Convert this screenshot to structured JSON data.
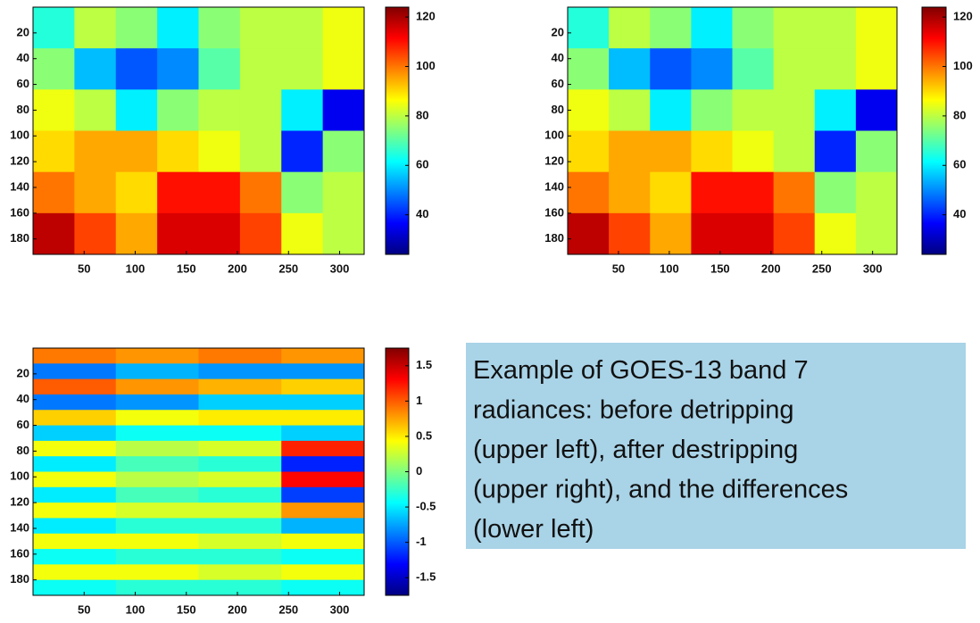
{
  "chart_data": [
    {
      "type": "heatmap",
      "colormap": "jet",
      "xlim": [
        0,
        324
      ],
      "ylim": [
        0,
        192
      ],
      "y_reversed": true,
      "xticks": [
        50,
        100,
        150,
        200,
        250,
        300
      ],
      "yticks": [
        20,
        40,
        60,
        80,
        100,
        120,
        140,
        160,
        180
      ],
      "colorbar": {
        "lim": [
          24,
          124
        ],
        "ticks": [
          40,
          60,
          80,
          100,
          120
        ]
      },
      "z": [
        [
          65,
          80,
          75,
          60,
          75,
          80,
          80,
          85
        ],
        [
          75,
          55,
          45,
          50,
          70,
          80,
          80,
          85
        ],
        [
          85,
          80,
          60,
          75,
          80,
          80,
          60,
          35
        ],
        [
          90,
          95,
          95,
          90,
          85,
          80,
          40,
          75
        ],
        [
          100,
          95,
          90,
          110,
          110,
          100,
          75,
          80
        ],
        [
          118,
          105,
          95,
          115,
          115,
          105,
          85,
          80
        ]
      ]
    },
    {
      "type": "heatmap",
      "colormap": "jet",
      "xlim": [
        0,
        324
      ],
      "ylim": [
        0,
        192
      ],
      "y_reversed": true,
      "xticks": [
        50,
        100,
        150,
        200,
        250,
        300
      ],
      "yticks": [
        20,
        40,
        60,
        80,
        100,
        120,
        140,
        160,
        180
      ],
      "colorbar": {
        "lim": [
          24,
          124
        ],
        "ticks": [
          40,
          60,
          80,
          100,
          120
        ]
      },
      "z": [
        [
          65,
          80,
          75,
          60,
          75,
          80,
          80,
          85
        ],
        [
          75,
          55,
          45,
          50,
          70,
          80,
          80,
          85
        ],
        [
          85,
          80,
          60,
          75,
          80,
          80,
          60,
          35
        ],
        [
          90,
          95,
          95,
          90,
          85,
          80,
          40,
          75
        ],
        [
          100,
          95,
          90,
          110,
          110,
          100,
          75,
          80
        ],
        [
          118,
          105,
          95,
          115,
          115,
          105,
          85,
          80
        ]
      ]
    },
    {
      "type": "heatmap",
      "colormap": "jet",
      "xlim": [
        0,
        324
      ],
      "ylim": [
        0,
        192
      ],
      "y_reversed": true,
      "xticks": [
        50,
        100,
        150,
        200,
        250,
        300
      ],
      "yticks": [
        20,
        40,
        60,
        80,
        100,
        120,
        140,
        160,
        180
      ],
      "colorbar": {
        "lim": [
          -1.75,
          1.75
        ],
        "ticks": [
          -1.5,
          -1,
          -0.5,
          0,
          0.5,
          1,
          1.5
        ]
      },
      "z": [
        [
          0.9,
          0.8,
          0.9,
          0.8
        ],
        [
          -0.9,
          -0.7,
          -0.8,
          -0.8
        ],
        [
          1.0,
          0.8,
          0.7,
          0.6
        ],
        [
          -0.9,
          -0.8,
          -0.6,
          -0.6
        ],
        [
          0.6,
          0.4,
          0.5,
          0.5
        ],
        [
          -0.6,
          -0.4,
          -0.4,
          -0.6
        ],
        [
          0.4,
          0.2,
          0.3,
          1.2
        ],
        [
          -0.5,
          -0.2,
          -0.3,
          -1.2
        ],
        [
          0.4,
          0.2,
          0.3,
          1.3
        ],
        [
          -0.5,
          -0.2,
          -0.3,
          -1.1
        ],
        [
          0.4,
          0.3,
          0.3,
          0.8
        ],
        [
          -0.5,
          -0.3,
          -0.3,
          -0.7
        ],
        [
          0.4,
          0.4,
          0.3,
          0.4
        ],
        [
          -0.4,
          -0.3,
          -0.3,
          -0.4
        ],
        [
          0.4,
          0.4,
          0.3,
          0.4
        ],
        [
          -0.4,
          -0.3,
          -0.3,
          -0.4
        ]
      ]
    }
  ],
  "caption": {
    "lines": [
      "Example of GOES-13 band 7",
      "radiances: before detripping",
      "(upper left), after destripping",
      "(upper right), and the differences",
      "(lower left)"
    ]
  }
}
